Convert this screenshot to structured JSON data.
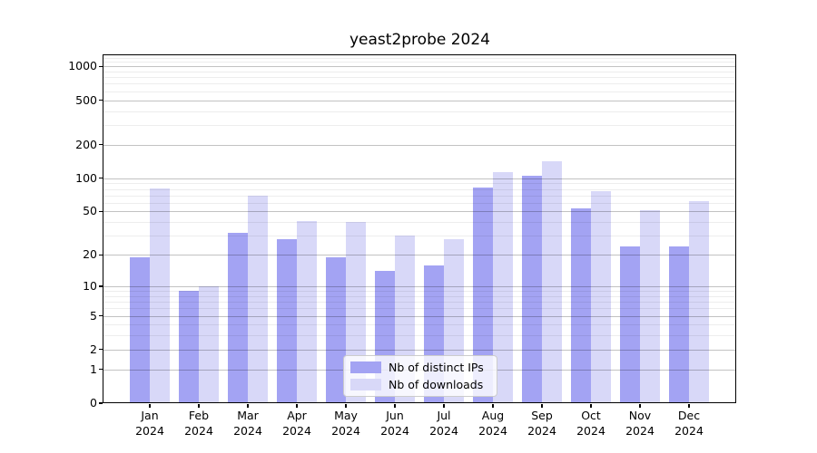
{
  "chart_data": {
    "type": "bar",
    "title": "yeast2probe 2024",
    "xlabel": "",
    "ylabel": "",
    "categories": [
      {
        "month": "Jan",
        "year": "2024"
      },
      {
        "month": "Feb",
        "year": "2024"
      },
      {
        "month": "Mar",
        "year": "2024"
      },
      {
        "month": "Apr",
        "year": "2024"
      },
      {
        "month": "May",
        "year": "2024"
      },
      {
        "month": "Jun",
        "year": "2024"
      },
      {
        "month": "Jul",
        "year": "2024"
      },
      {
        "month": "Aug",
        "year": "2024"
      },
      {
        "month": "Sep",
        "year": "2024"
      },
      {
        "month": "Oct",
        "year": "2024"
      },
      {
        "month": "Nov",
        "year": "2024"
      },
      {
        "month": "Dec",
        "year": "2024"
      }
    ],
    "series": [
      {
        "name": "Nb of distinct IPs",
        "color": "#a3a3f3",
        "values": [
          19,
          9,
          32,
          28,
          19,
          14,
          16,
          83,
          106,
          53,
          24,
          24
        ]
      },
      {
        "name": "Nb of downloads",
        "color": "#d8d8f8",
        "values": [
          81,
          10,
          69,
          41,
          40,
          30,
          28,
          114,
          143,
          77,
          51,
          62
        ]
      }
    ],
    "y_axis": {
      "scale": "log1p",
      "ticks": [
        0,
        1,
        2,
        5,
        10,
        20,
        50,
        100,
        200,
        500,
        1000
      ],
      "minor_ticks": [
        3,
        4,
        6,
        7,
        8,
        9,
        30,
        40,
        60,
        70,
        80,
        90,
        300,
        400,
        600,
        700,
        800,
        900,
        1100,
        1200
      ],
      "range": [
        0,
        1230
      ]
    },
    "legend": {
      "position": "lower-center",
      "entries": [
        "Nb of distinct IPs",
        "Nb of downloads"
      ]
    },
    "grid": true,
    "colors": {
      "background": "#ffffff",
      "axis": "#000000",
      "text": "#000000",
      "major_grid_rgba": "rgba(0,0,0,0.24)",
      "minor_grid_rgba": "rgba(0,0,0,0.07)",
      "legend_border": "#cccccc"
    }
  }
}
